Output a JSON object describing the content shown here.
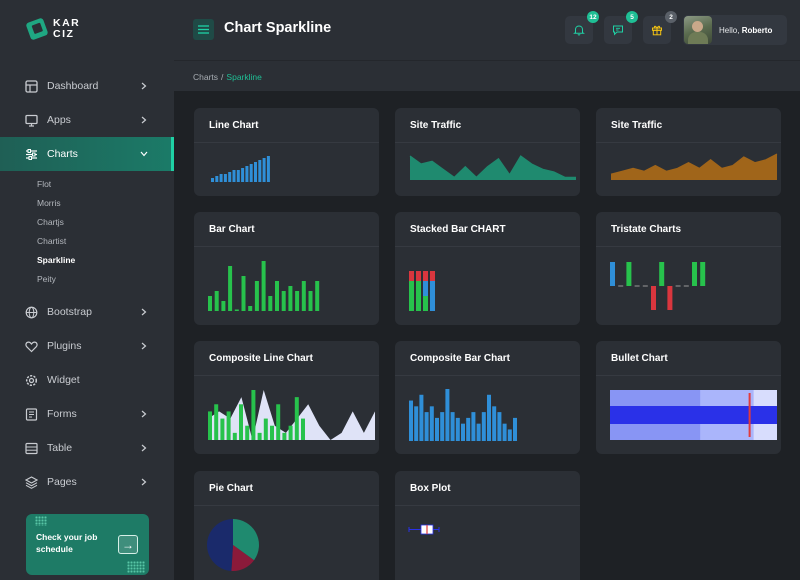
{
  "logo": {
    "line1": "KAR",
    "line2": "CIZ"
  },
  "header": {
    "title": "Chart Sparkline",
    "notifications": [
      {
        "icon": "bell-icon",
        "count": "12",
        "color": "#1fbf95"
      },
      {
        "icon": "chat-icon",
        "count": "5",
        "color": "#1fbf95"
      },
      {
        "icon": "gift-icon",
        "count": "2",
        "color": "#5a6068"
      }
    ],
    "user": {
      "greeting": "Hello,",
      "name": "Roberto"
    }
  },
  "breadcrumb": {
    "root": "Charts",
    "sep": "/",
    "current": "Sparkline"
  },
  "sidebar": {
    "items": [
      {
        "label": "Dashboard",
        "icon": "dashboard-icon"
      },
      {
        "label": "Apps",
        "icon": "monitor-icon"
      },
      {
        "label": "Charts",
        "icon": "sliders-icon"
      },
      {
        "label": "Bootstrap",
        "icon": "globe-icon"
      },
      {
        "label": "Plugins",
        "icon": "heart-icon"
      },
      {
        "label": "Widget",
        "icon": "settings-icon"
      },
      {
        "label": "Forms",
        "icon": "form-icon"
      },
      {
        "label": "Table",
        "icon": "table-icon"
      },
      {
        "label": "Pages",
        "icon": "layers-icon"
      }
    ],
    "submenu": [
      "Flot",
      "Morris",
      "Chartjs",
      "Chartist",
      "Sparkline",
      "Peity"
    ],
    "promo": {
      "text": "Check your job schedule",
      "button": "→"
    }
  },
  "cards": {
    "line": {
      "title": "Line Chart",
      "chart_data": {
        "type": "bar",
        "color": "#2f8fd8",
        "values": [
          1,
          1.5,
          2,
          2,
          2.5,
          3,
          3,
          3.5,
          4,
          4.5,
          5,
          5.5,
          6,
          6.5
        ]
      }
    },
    "traffic1": {
      "title": "Site Traffic",
      "chart_data": {
        "type": "area",
        "color": "#1f8a6f",
        "values": [
          9,
          6,
          7,
          4,
          1,
          5,
          1,
          5,
          8,
          2,
          9,
          6,
          4,
          3,
          1,
          1
        ]
      }
    },
    "traffic2": {
      "title": "Site Traffic",
      "chart_data": {
        "type": "area",
        "color": "#a0651a",
        "values": [
          2,
          3,
          4,
          3,
          5,
          3,
          4,
          6,
          4,
          7,
          4,
          5,
          8,
          6,
          7,
          9
        ]
      }
    },
    "bar": {
      "title": "Bar Chart",
      "chart_data": {
        "type": "bar",
        "color": "#27c24c",
        "values": [
          3,
          4,
          2,
          9,
          0,
          7,
          1,
          6,
          10,
          3,
          6,
          4,
          5,
          4,
          6,
          4,
          6
        ]
      }
    },
    "stacked": {
      "title": "Stacked Bar CHART",
      "chart_data": {
        "type": "stacked-bar",
        "colors": [
          "#27c24c",
          "#2f8fd8",
          "#d9363e"
        ],
        "stacks": [
          [
            6,
            0,
            2
          ],
          [
            6,
            0,
            2
          ],
          [
            3,
            3,
            2
          ],
          [
            0,
            6,
            2
          ]
        ]
      }
    },
    "tristate": {
      "title": "Tristate Charts",
      "chart_data": {
        "type": "tristate",
        "colors": {
          "pos": "#27c24c",
          "neg": "#d9363e",
          "zero": "#999999",
          "first": "#2f8fd8"
        },
        "values": [
          1,
          0,
          1,
          0,
          0,
          -1,
          1,
          -1,
          0,
          0,
          1,
          1
        ]
      }
    },
    "compLine": {
      "title": "Composite Line Chart",
      "chart_data": {
        "type": "composite",
        "bars": {
          "color": "#27c24c",
          "values": [
            4,
            5,
            3,
            4,
            1,
            5,
            2,
            7,
            1,
            3,
            2,
            5,
            1,
            2,
            6,
            3
          ]
        },
        "area": {
          "color": "#dfe3f7",
          "values": [
            3,
            4,
            3,
            6,
            0,
            7,
            2,
            1,
            3,
            5,
            2,
            0,
            1,
            4,
            1,
            4
          ]
        }
      }
    },
    "compBar": {
      "title": "Composite Bar Chart",
      "chart_data": {
        "type": "bar",
        "color": "#2f8fd8",
        "values": [
          7,
          6,
          8,
          5,
          6,
          4,
          5,
          9,
          5,
          4,
          3,
          4,
          5,
          3,
          5,
          8,
          6,
          5,
          3,
          2,
          4
        ]
      }
    },
    "bullet": {
      "title": "Bullet Chart",
      "chart_data": {
        "type": "bullet",
        "target": 8.3,
        "performance": 10,
        "ranges": [
          10,
          8.6,
          5.4
        ]
      }
    },
    "pie": {
      "title": "Pie Chart",
      "chart_data": {
        "type": "pie",
        "colors": [
          "#1f8a6f",
          "#8b1a3a",
          "#1a2a6b"
        ],
        "values": [
          35,
          16,
          49
        ]
      }
    },
    "box": {
      "title": "Box Plot",
      "chart_data": {
        "type": "box",
        "values": [
          1,
          3,
          4,
          5,
          6
        ]
      }
    }
  }
}
